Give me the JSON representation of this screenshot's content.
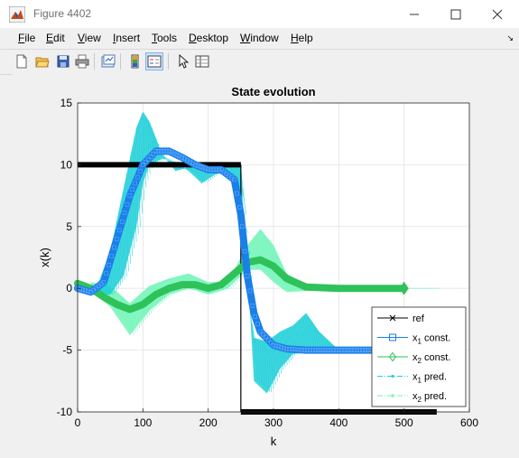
{
  "window": {
    "title": "Figure 4402",
    "icon": "matlab-figure-icon",
    "controls": [
      "minimize-icon",
      "maximize-icon",
      "close-icon"
    ]
  },
  "menu": {
    "items": [
      {
        "mnemonic": "F",
        "rest": "ile"
      },
      {
        "mnemonic": "E",
        "rest": "dit"
      },
      {
        "mnemonic": "V",
        "rest": "iew"
      },
      {
        "mnemonic": "I",
        "rest": "nsert"
      },
      {
        "mnemonic": "T",
        "rest": "ools"
      },
      {
        "mnemonic": "D",
        "rest": "esktop"
      },
      {
        "mnemonic": "W",
        "rest": "indow"
      },
      {
        "mnemonic": "H",
        "rest": "elp"
      }
    ]
  },
  "toolbar": {
    "buttons": [
      "new-figure-icon",
      "open-file-icon",
      "save-icon",
      "print-icon",
      "link-plot-icon",
      "colorbar-icon",
      "legend-icon",
      "pointer-icon",
      "property-inspector-icon"
    ],
    "selected": "legend-icon"
  },
  "colors": {
    "ref": "#000000",
    "x1_const": "#1a7fe8",
    "x2_const": "#2fc25a",
    "x1_pred": "#1fcfd8",
    "x2_pred": "#72f5b8"
  },
  "chart_data": {
    "type": "line",
    "title": "State evolution",
    "xlabel": "k",
    "ylabel": "x(k)",
    "xlim": [
      0,
      600
    ],
    "ylim": [
      -10,
      15
    ],
    "xticks": [
      0,
      100,
      200,
      300,
      400,
      500,
      600
    ],
    "yticks": [
      -10,
      -5,
      0,
      5,
      10,
      15
    ],
    "grid": true,
    "legend_position": "bottom-right",
    "legend": [
      {
        "series": "ref",
        "label": "ref"
      },
      {
        "series": "x1_const",
        "label": "x",
        "sub": "1",
        "suffix": " const."
      },
      {
        "series": "x2_const",
        "label": "x",
        "sub": "2",
        "suffix": " const."
      },
      {
        "series": "x1_pred",
        "label": "x",
        "sub": "1",
        "suffix": " pred."
      },
      {
        "series": "x2_pred",
        "label": "x",
        "sub": "2",
        "suffix": " pred."
      }
    ],
    "series": {
      "ref": {
        "x": [
          0,
          250,
          250,
          550
        ],
        "y": [
          10,
          10,
          -10,
          -10
        ]
      },
      "x1_const": {
        "x": [
          0,
          20,
          40,
          60,
          80,
          100,
          120,
          140,
          160,
          180,
          200,
          220,
          240,
          250,
          260,
          270,
          280,
          300,
          320,
          350,
          400,
          450,
          500
        ],
        "y": [
          0,
          -0.3,
          0.5,
          4,
          7.5,
          10,
          11.1,
          11.1,
          10.6,
          10,
          9.6,
          9.6,
          8.8,
          6,
          1,
          -2,
          -3.5,
          -4.6,
          -4.9,
          -5,
          -5,
          -5,
          -5
        ]
      },
      "x2_const": {
        "x": [
          0,
          20,
          40,
          60,
          80,
          100,
          120,
          140,
          160,
          180,
          200,
          220,
          240,
          260,
          280,
          300,
          320,
          350,
          400,
          450,
          500
        ],
        "y": [
          0.4,
          0,
          -0.7,
          -1.3,
          -1.7,
          -1.3,
          -0.5,
          0,
          0.3,
          0.3,
          0,
          0.3,
          1.2,
          2.1,
          2.3,
          1.8,
          0.8,
          0.1,
          0,
          0,
          0
        ]
      },
      "x1_pred_upper": {
        "x": [
          30,
          50,
          70,
          90,
          100,
          110,
          130,
          150,
          170,
          190,
          210,
          230,
          250,
          260,
          270,
          290,
          310,
          330,
          350,
          370,
          400,
          450,
          500
        ],
        "y": [
          0.2,
          3,
          8,
          13,
          14.3,
          13.5,
          10.8,
          9.5,
          9.8,
          10,
          10,
          10,
          10.2,
          0,
          -4,
          -4.3,
          -3.5,
          -3,
          -2,
          -3.5,
          -5,
          -5,
          -5
        ]
      },
      "x1_pred_lower": {
        "x": [
          30,
          50,
          70,
          90,
          100,
          110,
          130,
          150,
          170,
          190,
          210,
          230,
          250,
          260,
          270,
          290,
          310,
          330,
          350,
          370,
          400,
          450,
          500
        ],
        "y": [
          -0.5,
          -0.5,
          1,
          5,
          8.5,
          10,
          10.5,
          10.2,
          9.5,
          8.5,
          9.2,
          9.5,
          7,
          2,
          -7.5,
          -8.5,
          -6.5,
          -5.3,
          -5.2,
          -5.1,
          -5,
          -5,
          -5
        ]
      },
      "x2_pred_upper": {
        "x": [
          20,
          50,
          80,
          110,
          140,
          170,
          200,
          230,
          260,
          280,
          300,
          320,
          350,
          400,
          450,
          500,
          550
        ],
        "y": [
          0.5,
          0.2,
          -1.2,
          0.2,
          0.8,
          1.2,
          0.5,
          0.5,
          3.5,
          4.8,
          3.5,
          1.2,
          0.3,
          0.1,
          0,
          0,
          0
        ]
      },
      "x2_pred_lower": {
        "x": [
          20,
          50,
          80,
          110,
          140,
          170,
          200,
          230,
          260,
          280,
          300,
          320,
          350,
          400,
          450,
          500,
          550
        ],
        "y": [
          -0.2,
          -1.5,
          -3.8,
          -1.8,
          -0.5,
          0,
          -0.5,
          0,
          1.5,
          1.5,
          0.5,
          -0.3,
          -0.2,
          0,
          0,
          0,
          0
        ]
      }
    }
  }
}
